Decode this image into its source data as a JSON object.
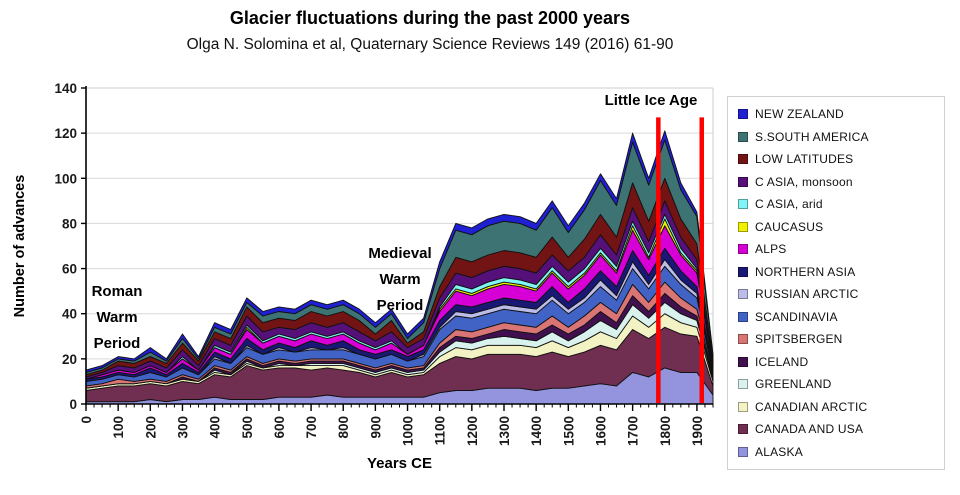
{
  "header": {
    "title": "Glacier fluctuations during the past 2000 years",
    "subtitle": "Olga N. Solomina et al, Quaternary Science Reviews 149 (2016) 61-90"
  },
  "chart_data": {
    "type": "area",
    "stacked": true,
    "title": "Glacier fluctuations during the past 2000 years",
    "subtitle": "Olga N. Solomina et al, Quaternary Science Reviews 149 (2016) 61-90",
    "xlabel": "Years CE",
    "ylabel": "Number of advances",
    "ylim": [
      0,
      140
    ],
    "yticks": [
      0,
      20,
      40,
      60,
      80,
      100,
      120,
      140
    ],
    "xticks": [
      0,
      100,
      200,
      300,
      400,
      500,
      600,
      700,
      800,
      900,
      1000,
      1100,
      1200,
      1300,
      1400,
      1500,
      1600,
      1700,
      1800,
      1900
    ],
    "x_minor_tick_step": 25,
    "grid": "horizontal",
    "legend_position": "right",
    "x_years": [
      0,
      50,
      100,
      150,
      200,
      250,
      300,
      350,
      400,
      450,
      500,
      550,
      600,
      650,
      700,
      750,
      800,
      850,
      900,
      950,
      1000,
      1050,
      1100,
      1150,
      1200,
      1250,
      1300,
      1350,
      1400,
      1450,
      1500,
      1550,
      1600,
      1650,
      1700,
      1750,
      1800,
      1850,
      1900,
      1950
    ],
    "series": [
      {
        "name": "NEW ZEALAND",
        "color": "#1f1fd4",
        "values": [
          1,
          1,
          1,
          1,
          2,
          1,
          2,
          1,
          2,
          2,
          2,
          2,
          2,
          2,
          2,
          2,
          2,
          2,
          2,
          2,
          2,
          2,
          3,
          3,
          3,
          3,
          3,
          3,
          3,
          3,
          3,
          3,
          3,
          3,
          4,
          3,
          4,
          3,
          2,
          1
        ]
      },
      {
        "name": "S.SOUTH AMERICA",
        "color": "#3e7373",
        "values": [
          1,
          1,
          1,
          1,
          2,
          1,
          2,
          1,
          2,
          2,
          2,
          3,
          3,
          3,
          3,
          3,
          3,
          3,
          3,
          3,
          2,
          4,
          8,
          12,
          12,
          13,
          13,
          13,
          12,
          13,
          11,
          13,
          15,
          14,
          18,
          16,
          17,
          13,
          12,
          2
        ]
      },
      {
        "name": "LOW LATITUDES",
        "color": "#731414",
        "values": [
          1,
          1,
          2,
          2,
          2,
          2,
          3,
          2,
          3,
          3,
          4,
          4,
          4,
          4,
          5,
          5,
          5,
          5,
          3,
          5,
          2,
          3,
          5,
          7,
          7,
          7,
          7,
          7,
          7,
          8,
          6,
          8,
          9,
          8,
          11,
          9,
          10,
          8,
          7,
          1
        ]
      },
      {
        "name": "C ASIA, monsoon",
        "color": "#55107a",
        "values": [
          1,
          1,
          2,
          2,
          2,
          2,
          3,
          2,
          3,
          3,
          4,
          4,
          3,
          4,
          4,
          4,
          4,
          4,
          3,
          4,
          3,
          3,
          4,
          5,
          5,
          5,
          5,
          5,
          5,
          5,
          5,
          5,
          6,
          5,
          6,
          5,
          6,
          5,
          4,
          1
        ]
      },
      {
        "name": "C ASIA, arid",
        "color": "#80f5f5",
        "values": [
          0,
          0,
          0,
          0,
          0,
          0,
          1,
          0,
          1,
          1,
          1,
          1,
          1,
          1,
          1,
          1,
          1,
          1,
          1,
          1,
          0,
          0,
          1,
          2,
          2,
          2,
          2,
          2,
          2,
          2,
          2,
          2,
          2,
          2,
          2,
          2,
          2,
          2,
          1,
          0
        ]
      },
      {
        "name": "CAUCASUS",
        "color": "#f0f000",
        "values": [
          0,
          0,
          0,
          0,
          0,
          0,
          0,
          0,
          0,
          0,
          1,
          0,
          0,
          0,
          0,
          0,
          0,
          0,
          0,
          0,
          0,
          0,
          1,
          1,
          1,
          1,
          1,
          1,
          1,
          1,
          1,
          1,
          1,
          1,
          2,
          1,
          3,
          1,
          1,
          0
        ]
      },
      {
        "name": "ALPS",
        "color": "#d600d6",
        "values": [
          0,
          1,
          1,
          1,
          1,
          1,
          2,
          1,
          2,
          2,
          4,
          3,
          3,
          3,
          3,
          3,
          3,
          3,
          2,
          3,
          1,
          2,
          4,
          6,
          5,
          6,
          6,
          6,
          5,
          6,
          6,
          6,
          7,
          6,
          9,
          7,
          10,
          7,
          6,
          1
        ]
      },
      {
        "name": "NORTHERN ASIA",
        "color": "#191975",
        "values": [
          1,
          1,
          1,
          1,
          2,
          1,
          2,
          1,
          2,
          2,
          3,
          2,
          2,
          2,
          3,
          2,
          3,
          2,
          2,
          2,
          2,
          2,
          3,
          3,
          3,
          3,
          3,
          3,
          3,
          4,
          3,
          4,
          4,
          4,
          5,
          4,
          5,
          4,
          3,
          1
        ]
      },
      {
        "name": "RUSSIAN ARCTIC",
        "color": "#bcbce8",
        "values": [
          0,
          0,
          0,
          0,
          0,
          0,
          0,
          0,
          1,
          0,
          1,
          0,
          1,
          0,
          1,
          0,
          1,
          0,
          0,
          0,
          0,
          1,
          1,
          2,
          2,
          2,
          2,
          2,
          2,
          2,
          2,
          2,
          3,
          2,
          3,
          2,
          3,
          2,
          2,
          1
        ]
      },
      {
        "name": "SCANDINAVIA",
        "color": "#4263c6",
        "values": [
          2,
          2,
          2,
          2,
          3,
          2,
          3,
          2,
          3,
          3,
          4,
          4,
          4,
          4,
          4,
          4,
          4,
          4,
          4,
          4,
          3,
          4,
          6,
          6,
          6,
          6,
          6,
          6,
          6,
          7,
          6,
          6,
          7,
          6,
          7,
          6,
          7,
          6,
          5,
          1
        ]
      },
      {
        "name": "SPITSBERGEN",
        "color": "#d97575",
        "values": [
          1,
          1,
          2,
          1,
          1,
          1,
          1,
          1,
          1,
          1,
          1,
          1,
          1,
          1,
          1,
          1,
          1,
          1,
          1,
          1,
          1,
          1,
          2,
          3,
          3,
          3,
          3,
          3,
          3,
          4,
          3,
          4,
          4,
          4,
          5,
          4,
          5,
          4,
          3,
          1
        ]
      },
      {
        "name": "ICELAND",
        "color": "#40104f",
        "values": [
          0,
          0,
          0,
          0,
          0,
          0,
          1,
          0,
          1,
          1,
          1,
          1,
          1,
          1,
          1,
          1,
          1,
          1,
          1,
          1,
          1,
          1,
          2,
          2,
          2,
          2,
          3,
          3,
          3,
          3,
          3,
          3,
          4,
          3,
          4,
          3,
          4,
          3,
          2,
          1
        ]
      },
      {
        "name": "GREENLAND",
        "color": "#d9f2ee",
        "values": [
          0,
          0,
          0,
          0,
          0,
          0,
          0,
          0,
          1,
          0,
          1,
          0,
          1,
          0,
          1,
          1,
          1,
          1,
          1,
          1,
          1,
          1,
          2,
          3,
          3,
          3,
          4,
          3,
          3,
          4,
          3,
          4,
          5,
          4,
          5,
          4,
          5,
          4,
          3,
          1
        ]
      },
      {
        "name": "CANADIAN ARCTIC",
        "color": "#f2f2c4",
        "values": [
          1,
          1,
          1,
          1,
          1,
          1,
          1,
          1,
          1,
          1,
          1,
          1,
          1,
          1,
          2,
          1,
          2,
          1,
          1,
          1,
          1,
          1,
          3,
          4,
          4,
          4,
          4,
          4,
          4,
          5,
          4,
          5,
          6,
          5,
          6,
          5,
          6,
          5,
          4,
          2
        ]
      },
      {
        "name": "CANADA AND USA",
        "color": "#702e50",
        "values": [
          5,
          6,
          7,
          7,
          7,
          7,
          8,
          7,
          10,
          10,
          15,
          13,
          13,
          13,
          12,
          12,
          12,
          11,
          9,
          11,
          9,
          10,
          13,
          15,
          14,
          15,
          15,
          15,
          15,
          16,
          14,
          15,
          17,
          16,
          19,
          17,
          18,
          17,
          16,
          4
        ]
      },
      {
        "name": "ALASKA",
        "color": "#9494de",
        "values": [
          1,
          1,
          1,
          1,
          2,
          1,
          2,
          2,
          3,
          2,
          2,
          2,
          3,
          3,
          3,
          4,
          3,
          3,
          3,
          3,
          3,
          3,
          5,
          6,
          6,
          7,
          7,
          7,
          6,
          7,
          7,
          8,
          9,
          8,
          14,
          12,
          16,
          14,
          14,
          4
        ]
      }
    ],
    "annotations": {
      "roman": "Roman\nWarm\nPeriod",
      "medieval": "Medieval\nWarm\nPeriod",
      "little_ice_age": "Little Ice Age"
    },
    "red_lines": {
      "years": [
        1780,
        1915
      ],
      "top_value": 127,
      "color": "#ff0000"
    }
  }
}
